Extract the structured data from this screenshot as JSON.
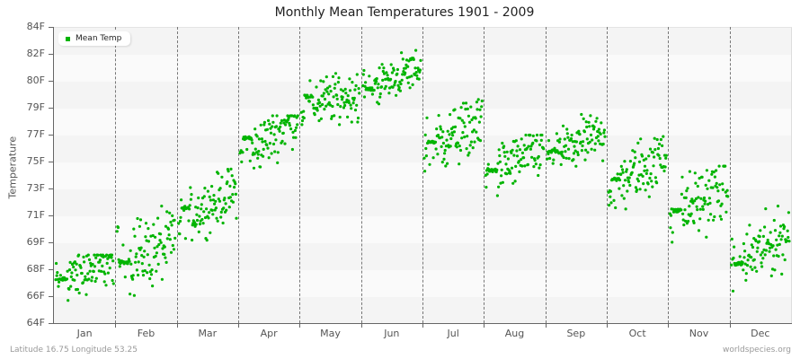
{
  "title": "Monthly Mean Temperatures 1901 - 2009",
  "footer": {
    "left": "Latitude 16.75 Longitude 53.25",
    "right": "worldspecies.org"
  },
  "legend": {
    "label": "Mean Temp",
    "icon": "square-marker-icon"
  },
  "colors": {
    "series": "#00b400",
    "band_dark": "#f4f4f4",
    "band_light": "#fafafa",
    "gridline": "#777777"
  },
  "chart_data": {
    "type": "scatter",
    "title": "Monthly Mean Temperatures 1901 - 2009",
    "xlabel": "",
    "ylabel": "Temperature",
    "yticks": [
      "84F",
      "82F",
      "80F",
      "79F",
      "77F",
      "75F",
      "73F",
      "71F",
      "69F",
      "68F",
      "66F",
      "64F"
    ],
    "ylim": [
      "64F",
      "84F"
    ],
    "categories": [
      "Jan",
      "Feb",
      "Mar",
      "Apr",
      "May",
      "Jun",
      "Jul",
      "Aug",
      "Sep",
      "Oct",
      "Nov",
      "Dec"
    ],
    "grid": {
      "horizontal_bands": true,
      "vertical_dashed_month_separators": true
    },
    "legend_position": "top-left",
    "series": [
      {
        "name": "Mean Temp",
        "years": "1901-2009 (109 points per month)",
        "monthly_ranges_F": [
          {
            "month": "Jan",
            "start": 66.8,
            "end": 68.2,
            "min": 64.5,
            "max": 68.6,
            "typical": 67.0
          },
          {
            "month": "Feb",
            "start": 68.0,
            "end": 69.5,
            "min": 64.7,
            "max": 71.9,
            "typical": 68.1
          },
          {
            "month": "Mar",
            "start": 70.8,
            "end": 73.0,
            "min": 69.6,
            "max": 74.4,
            "typical": 71.8
          },
          {
            "month": "Apr",
            "start": 75.0,
            "end": 78.0,
            "min": 73.3,
            "max": 78.0,
            "typical": 76.5
          },
          {
            "month": "May",
            "start": 78.6,
            "end": 79.5,
            "min": 77.4,
            "max": 82.3,
            "typical": 79.3
          },
          {
            "month": "Jun",
            "start": 79.8,
            "end": 81.2,
            "min": 78.8,
            "max": 82.6,
            "typical": 79.8
          },
          {
            "month": "Jul",
            "start": 75.8,
            "end": 77.5,
            "min": 73.6,
            "max": 79.1,
            "typical": 76.2
          },
          {
            "month": "Aug",
            "start": 74.0,
            "end": 75.8,
            "min": 71.8,
            "max": 76.7,
            "typical": 74.3
          },
          {
            "month": "Sep",
            "start": 75.3,
            "end": 76.8,
            "min": 74.0,
            "max": 78.5,
            "typical": 75.6
          },
          {
            "month": "Oct",
            "start": 73.2,
            "end": 75.3,
            "min": 71.0,
            "max": 76.6,
            "typical": 73.7
          },
          {
            "month": "Nov",
            "start": 71.3,
            "end": 73.2,
            "min": 68.5,
            "max": 74.6,
            "typical": 71.6
          },
          {
            "month": "Dec",
            "start": 67.8,
            "end": 70.0,
            "min": 66.0,
            "max": 71.9,
            "typical": 68.0
          }
        ]
      }
    ]
  }
}
